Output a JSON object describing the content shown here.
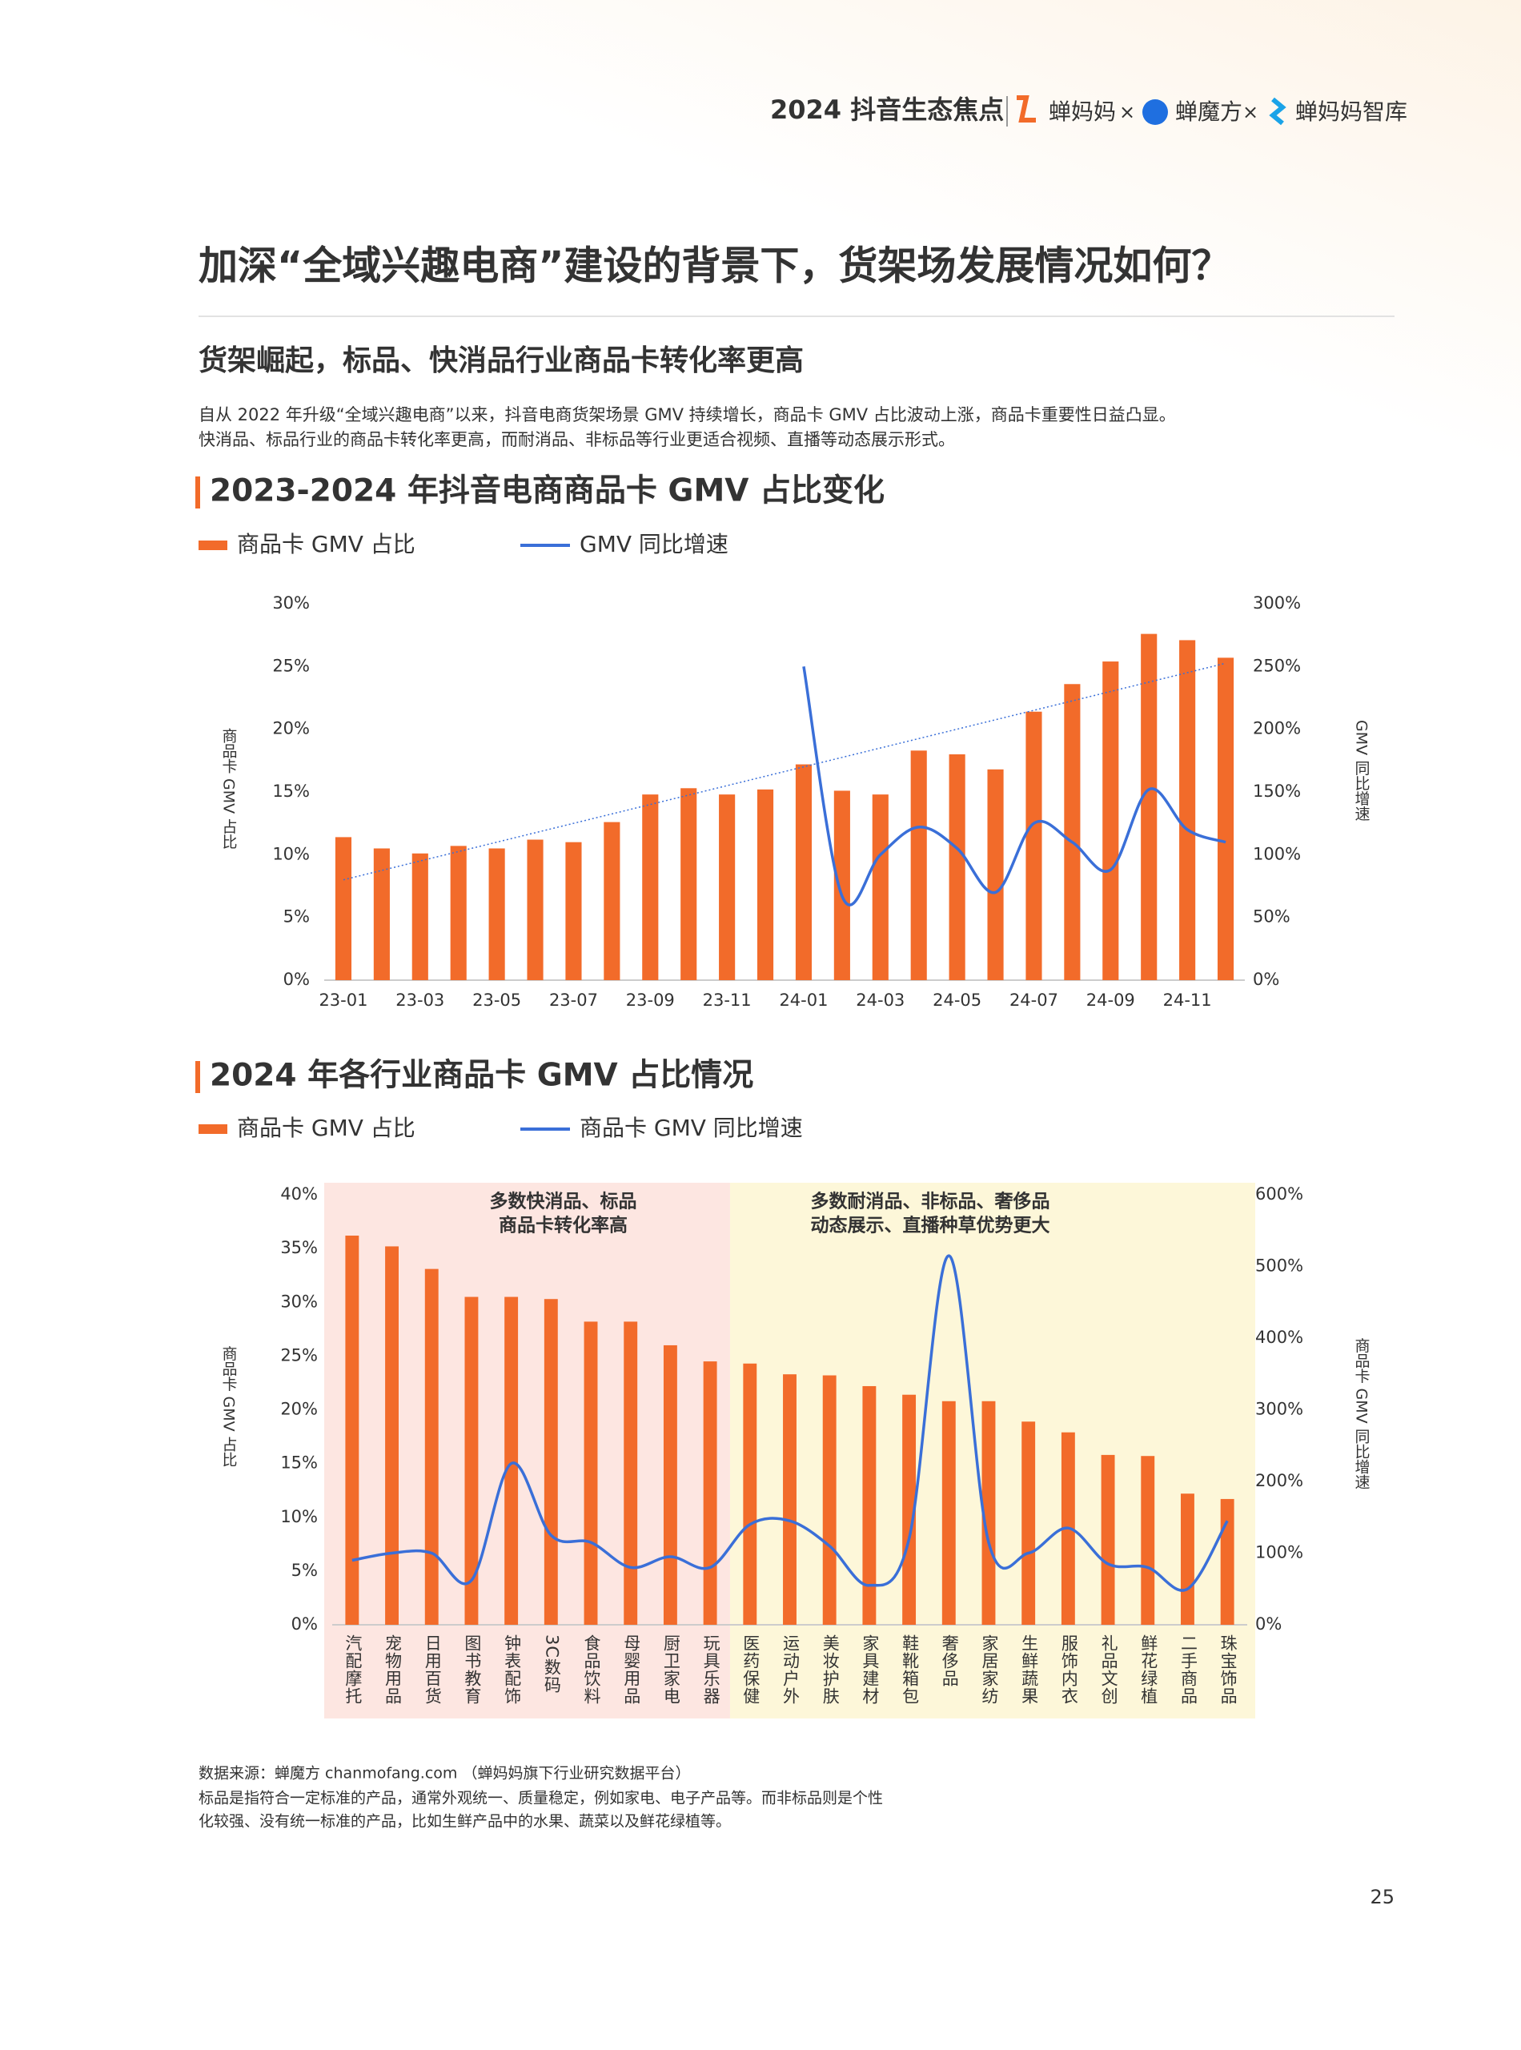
{
  "header": {
    "title": "2024 抖音生态焦点",
    "brands": [
      "蝉妈妈",
      "蝉魔方",
      "蝉妈妈智库"
    ],
    "separator": "×"
  },
  "title": "加深“全域兴趣电商”建设的背景下，货架场发展情况如何？",
  "subtitle": "货架崛起，标品、快消品行业商品卡转化率更高",
  "paragraph": [
    "自从 2022 年升级“全域兴趣电商”以来，抖音电商货架场景 GMV 持续增长，商品卡 GMV 占比波动上涨，商品卡重要性日益凸显。",
    "快消品、标品行业的商品卡转化率更高，而耐消品、非标品等行业更适合视频、直播等动态展示形式。"
  ],
  "chart_data": [
    {
      "type": "bar",
      "title": "2023-2024 年抖音电商商品卡 GMV 占比变化",
      "ylabel": "商品卡 GMV 占比",
      "y2label": "GMV 同比增速",
      "trendline": true,
      "categories": [
        "23-01",
        null,
        "23-03",
        null,
        "23-05",
        null,
        "23-07",
        null,
        "23-09",
        null,
        "23-11",
        null,
        "24-01",
        null,
        "24-03",
        null,
        "24-05",
        null,
        "24-07",
        null,
        "24-09",
        null,
        "24-11",
        null
      ],
      "series": [
        {
          "name": "商品卡 GMV 占比",
          "type": "bar",
          "color": "#f26b2a",
          "values": [
            11.4,
            10.5,
            10.1,
            10.7,
            10.5,
            11.2,
            11.0,
            12.6,
            14.8,
            15.3,
            14.8,
            15.2,
            17.2,
            15.1,
            14.8,
            18.3,
            18.0,
            16.8,
            21.4,
            23.6,
            25.4,
            27.6,
            27.1,
            25.7
          ]
        },
        {
          "name": "GMV 同比增速",
          "type": "line",
          "axis": "y2",
          "color": "#3a6fd8",
          "values": [
            null,
            null,
            null,
            null,
            null,
            null,
            null,
            null,
            null,
            null,
            null,
            null,
            250,
            67,
            100,
            122,
            105,
            70,
            125,
            110,
            88,
            152,
            120,
            110
          ]
        }
      ],
      "ylim": [
        0,
        30
      ],
      "yticks": [
        {
          "value": 0,
          "label": "0%"
        },
        {
          "value": 5,
          "label": "5%"
        },
        {
          "value": 10,
          "label": "10%"
        },
        {
          "value": 15,
          "label": "15%"
        },
        {
          "value": 20,
          "label": "20%"
        },
        {
          "value": 25,
          "label": "25%"
        },
        {
          "value": 30,
          "label": "30%"
        }
      ],
      "y2lim": [
        0,
        300
      ],
      "y2ticks": [
        {
          "value": 0,
          "label": "0%"
        },
        {
          "value": 50,
          "label": "50%"
        },
        {
          "value": 100,
          "label": "100%"
        },
        {
          "value": 150,
          "label": "150%"
        },
        {
          "value": 200,
          "label": "200%"
        },
        {
          "value": 250,
          "label": "250%"
        },
        {
          "value": 300,
          "label": "300%"
        }
      ]
    },
    {
      "type": "bar",
      "title": "2024 年各行业商品卡 GMV 占比情况",
      "ylabel": "商品卡 GMV 占比",
      "y2label": "商品卡 GMV 同比增速",
      "annotations": [
        [
          "多数快消品、标品",
          "商品卡转化率高"
        ],
        [
          "多数耐消品、非标品、奢侈品",
          "动态展示、直播种草优势更大"
        ]
      ],
      "categories": [
        "汽配摩托",
        "宠物用品",
        "日用百货",
        "图书教育",
        "钟表配饰",
        "3C数码",
        "食品饮料",
        "母婴用品",
        "厨卫家电",
        "玩具乐器",
        "医药保健",
        "运动户外",
        "美妆护肤",
        "家具建材",
        "鞋靴箱包",
        "奢侈品",
        "家居家纺",
        "生鲜蔬果",
        "服饰内衣",
        "礼品文创",
        "鲜花绿植",
        "二手商品",
        "珠宝饰品"
      ],
      "series": [
        {
          "name": "商品卡 GMV 占比",
          "type": "bar",
          "color": "#f26b2a",
          "values": [
            36.2,
            35.2,
            33.1,
            30.5,
            30.5,
            30.3,
            28.2,
            28.2,
            26.0,
            24.5,
            24.3,
            23.3,
            23.2,
            22.2,
            21.4,
            20.8,
            20.8,
            18.9,
            17.9,
            15.8,
            15.7,
            12.2,
            11.7
          ]
        },
        {
          "name": "商品卡 GMV 同比增速",
          "type": "line",
          "axis": "y2",
          "color": "#3a6fd8",
          "values": [
            90,
            100,
            100,
            62,
            225,
            125,
            115,
            80,
            95,
            80,
            140,
            145,
            110,
            55,
            120,
            515,
            115,
            100,
            135,
            85,
            80,
            50,
            145
          ]
        }
      ],
      "ylim": [
        0,
        40
      ],
      "yticks": [
        {
          "value": 0,
          "label": "0%"
        },
        {
          "value": 5,
          "label": "5%"
        },
        {
          "value": 10,
          "label": "10%"
        },
        {
          "value": 15,
          "label": "15%"
        },
        {
          "value": 20,
          "label": "20%"
        },
        {
          "value": 25,
          "label": "25%"
        },
        {
          "value": 30,
          "label": "30%"
        },
        {
          "value": 35,
          "label": "35%"
        },
        {
          "value": 40,
          "label": "40%"
        }
      ],
      "y2lim": [
        0,
        600
      ],
      "y2ticks": [
        {
          "value": 0,
          "label": "0%"
        },
        {
          "value": 100,
          "label": "100%"
        },
        {
          "value": 200,
          "label": "200%"
        },
        {
          "value": 300,
          "label": "300%"
        },
        {
          "value": 400,
          "label": "400%"
        },
        {
          "value": 500,
          "label": "500%"
        },
        {
          "value": 600,
          "label": "600%"
        }
      ]
    }
  ],
  "footer": [
    "数据来源：蝉魔方 chanmofang.com （蝉妈妈旗下行业研究数据平台）",
    "标品是指符合一定标准的产品，通常外观统一、质量稳定，例如家电、电子产品等。而非标品则是个性",
    "化较强、没有统一标准的产品，比如生鲜产品中的水果、蔬菜以及鲜花绿植等。"
  ],
  "page_number": "25"
}
